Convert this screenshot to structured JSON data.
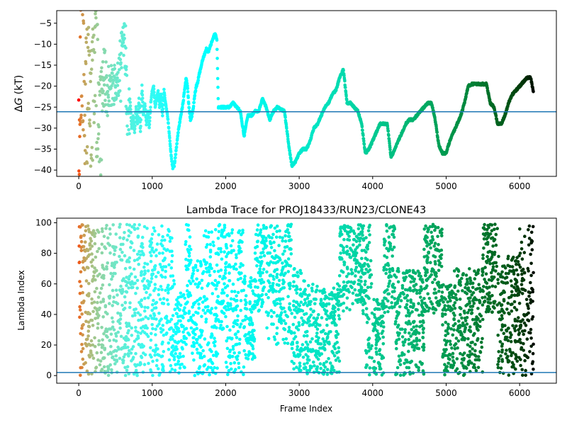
{
  "chart_data": [
    {
      "type": "scatter",
      "title": "",
      "xlabel": "",
      "ylabel_italic": "G",
      "ylabel_prefix": "Δ",
      "ylabel_suffix": " (kT)",
      "xlim": [
        -300,
        6500
      ],
      "ylim": [
        -41.5,
        -2
      ],
      "xticks": [
        0,
        1000,
        2000,
        3000,
        4000,
        5000,
        6000
      ],
      "yticks": [
        -40,
        -35,
        -30,
        -25,
        -20,
        -15,
        -10,
        -5
      ],
      "hline": -26.1,
      "hline_color": "#1f77b4",
      "colormap": "rainbow",
      "trace": [
        [
          0,
          -20
        ],
        [
          5,
          -38
        ],
        [
          10,
          -12
        ],
        [
          20,
          -32
        ],
        [
          30,
          -5
        ],
        [
          40,
          -25
        ],
        [
          55,
          -2
        ],
        [
          70,
          -30
        ],
        [
          85,
          -18
        ],
        [
          100,
          -36
        ],
        [
          120,
          -8
        ],
        [
          140,
          -28
        ],
        [
          160,
          -15
        ],
        [
          180,
          -38
        ],
        [
          200,
          -10
        ],
        [
          220,
          -25
        ],
        [
          240,
          -6
        ],
        [
          260,
          -33
        ],
        [
          280,
          -20
        ],
        [
          300,
          -40
        ],
        [
          320,
          -18
        ],
        [
          340,
          -22
        ],
        [
          360,
          -15
        ],
        [
          380,
          -24
        ],
        [
          400,
          -19
        ],
        [
          420,
          -21
        ],
        [
          440,
          -17
        ],
        [
          460,
          -22
        ],
        [
          480,
          -20
        ],
        [
          500,
          -18
        ],
        [
          520,
          -22
        ],
        [
          540,
          -15
        ],
        [
          560,
          -20
        ],
        [
          580,
          -12
        ],
        [
          600,
          -9
        ],
        [
          620,
          -8
        ],
        [
          640,
          -14
        ],
        [
          660,
          -26
        ],
        [
          680,
          -28
        ],
        [
          700,
          -24
        ],
        [
          720,
          -30
        ],
        [
          740,
          -27
        ],
        [
          760,
          -31
        ],
        [
          780,
          -25
        ],
        [
          800,
          -29
        ],
        [
          820,
          -23
        ],
        [
          840,
          -31
        ],
        [
          860,
          -20
        ],
        [
          880,
          -27
        ],
        [
          900,
          -24
        ],
        [
          920,
          -29
        ],
        [
          940,
          -26
        ],
        [
          960,
          -30
        ],
        [
          980,
          -24
        ],
        [
          1000,
          -21
        ],
        [
          1020,
          -20
        ],
        [
          1040,
          -25
        ],
        [
          1060,
          -23
        ],
        [
          1080,
          -21
        ],
        [
          1100,
          -25
        ],
        [
          1120,
          -22
        ],
        [
          1140,
          -27
        ],
        [
          1160,
          -21
        ],
        [
          1180,
          -24
        ],
        [
          1200,
          -26
        ],
        [
          1220,
          -29
        ],
        [
          1240,
          -33
        ],
        [
          1260,
          -37
        ],
        [
          1280,
          -39.5
        ],
        [
          1300,
          -39
        ],
        [
          1320,
          -36
        ],
        [
          1340,
          -33
        ],
        [
          1360,
          -30
        ],
        [
          1380,
          -28
        ],
        [
          1400,
          -26
        ],
        [
          1420,
          -24
        ],
        [
          1440,
          -21
        ],
        [
          1460,
          -18
        ],
        [
          1480,
          -20
        ],
        [
          1500,
          -25
        ],
        [
          1520,
          -28
        ],
        [
          1540,
          -27
        ],
        [
          1560,
          -25
        ],
        [
          1580,
          -22
        ],
        [
          1600,
          -20
        ],
        [
          1620,
          -19
        ],
        [
          1640,
          -17
        ],
        [
          1660,
          -16
        ],
        [
          1680,
          -14
        ],
        [
          1700,
          -13
        ],
        [
          1720,
          -12
        ],
        [
          1740,
          -11
        ],
        [
          1760,
          -12
        ],
        [
          1780,
          -11
        ],
        [
          1800,
          -10
        ],
        [
          1820,
          -9
        ],
        [
          1840,
          -8
        ],
        [
          1860,
          -7.5
        ],
        [
          1880,
          -9
        ],
        [
          1900,
          -25
        ],
        [
          1950,
          -25
        ],
        [
          2000,
          -25
        ],
        [
          2050,
          -25
        ],
        [
          2100,
          -24
        ],
        [
          2150,
          -25
        ],
        [
          2200,
          -26
        ],
        [
          2250,
          -32
        ],
        [
          2300,
          -27
        ],
        [
          2350,
          -27
        ],
        [
          2400,
          -26
        ],
        [
          2450,
          -26
        ],
        [
          2500,
          -23
        ],
        [
          2550,
          -25
        ],
        [
          2600,
          -28
        ],
        [
          2650,
          -26
        ],
        [
          2700,
          -25
        ],
        [
          2750,
          -25.5
        ],
        [
          2800,
          -26
        ],
        [
          2850,
          -33
        ],
        [
          2900,
          -39
        ],
        [
          2950,
          -38
        ],
        [
          3000,
          -36
        ],
        [
          3050,
          -35
        ],
        [
          3100,
          -35
        ],
        [
          3150,
          -33
        ],
        [
          3200,
          -30
        ],
        [
          3250,
          -29
        ],
        [
          3300,
          -27
        ],
        [
          3350,
          -25
        ],
        [
          3400,
          -24
        ],
        [
          3450,
          -22
        ],
        [
          3500,
          -21
        ],
        [
          3550,
          -18
        ],
        [
          3600,
          -16
        ],
        [
          3620,
          -19
        ],
        [
          3650,
          -24
        ],
        [
          3700,
          -24
        ],
        [
          3750,
          -25
        ],
        [
          3800,
          -26
        ],
        [
          3850,
          -29
        ],
        [
          3900,
          -36
        ],
        [
          3950,
          -35
        ],
        [
          4000,
          -33
        ],
        [
          4050,
          -31
        ],
        [
          4100,
          -29
        ],
        [
          4150,
          -29
        ],
        [
          4200,
          -29
        ],
        [
          4250,
          -37
        ],
        [
          4300,
          -35
        ],
        [
          4350,
          -33
        ],
        [
          4400,
          -31
        ],
        [
          4450,
          -29
        ],
        [
          4500,
          -28
        ],
        [
          4550,
          -28
        ],
        [
          4600,
          -27
        ],
        [
          4650,
          -26
        ],
        [
          4700,
          -25
        ],
        [
          4750,
          -24
        ],
        [
          4800,
          -24
        ],
        [
          4850,
          -28
        ],
        [
          4900,
          -34
        ],
        [
          4950,
          -36
        ],
        [
          5000,
          -36
        ],
        [
          5050,
          -33
        ],
        [
          5100,
          -31
        ],
        [
          5150,
          -29
        ],
        [
          5200,
          -27
        ],
        [
          5250,
          -24
        ],
        [
          5300,
          -20
        ],
        [
          5350,
          -19.5
        ],
        [
          5400,
          -19.5
        ],
        [
          5450,
          -19.5
        ],
        [
          5500,
          -19.5
        ],
        [
          5550,
          -19.5
        ],
        [
          5600,
          -24
        ],
        [
          5650,
          -25
        ],
        [
          5700,
          -29
        ],
        [
          5750,
          -29
        ],
        [
          5800,
          -27
        ],
        [
          5850,
          -24
        ],
        [
          5900,
          -22
        ],
        [
          5950,
          -21
        ],
        [
          6000,
          -20
        ],
        [
          6050,
          -19
        ],
        [
          6100,
          -18
        ],
        [
          6150,
          -18
        ],
        [
          6190,
          -21.5
        ]
      ]
    },
    {
      "type": "scatter",
      "title": "Lambda Trace for PROJ18433/RUN23/CLONE43",
      "xlabel": "Frame Index",
      "ylabel": "Lambda Index",
      "xlim": [
        -300,
        6500
      ],
      "ylim": [
        -5,
        103
      ],
      "xticks": [
        0,
        1000,
        2000,
        3000,
        4000,
        5000,
        6000
      ],
      "yticks": [
        0,
        20,
        40,
        60,
        80,
        100
      ],
      "hline": 2,
      "hline_color": "#1f77b4",
      "colormap": "rainbow",
      "bands": [
        {
          "x": [
            0,
            120
          ],
          "min": 0,
          "max": 99
        },
        {
          "x": [
            120,
            650
          ],
          "min": 0,
          "max": 99
        },
        {
          "x": [
            650,
            1300
          ],
          "min": 0,
          "max": 99
        },
        {
          "x": [
            1300,
            1450
          ],
          "min": 0,
          "max": 60
        },
        {
          "x": [
            1450,
            1540
          ],
          "min": 20,
          "max": 99
        },
        {
          "x": [
            1540,
            1700
          ],
          "min": 0,
          "max": 75
        },
        {
          "x": [
            1700,
            1900
          ],
          "min": 0,
          "max": 99
        },
        {
          "x": [
            1900,
            2000
          ],
          "min": 30,
          "max": 99
        },
        {
          "x": [
            2000,
            2250
          ],
          "min": 0,
          "max": 99
        },
        {
          "x": [
            2250,
            2400
          ],
          "min": 10,
          "max": 65
        },
        {
          "x": [
            2400,
            2550
          ],
          "min": 40,
          "max": 99
        },
        {
          "x": [
            2550,
            2900
          ],
          "min": 20,
          "max": 99
        },
        {
          "x": [
            2900,
            3100
          ],
          "min": 0,
          "max": 70
        },
        {
          "x": [
            3100,
            3550
          ],
          "min": 0,
          "max": 60
        },
        {
          "x": [
            3550,
            3900
          ],
          "min": 40,
          "max": 99
        },
        {
          "x": [
            3900,
            4000
          ],
          "min": 0,
          "max": 99
        },
        {
          "x": [
            4000,
            4150
          ],
          "min": 0,
          "max": 50
        },
        {
          "x": [
            4150,
            4300
          ],
          "min": 40,
          "max": 99
        },
        {
          "x": [
            4300,
            4700
          ],
          "min": 0,
          "max": 70
        },
        {
          "x": [
            4700,
            4950
          ],
          "min": 40,
          "max": 99
        },
        {
          "x": [
            4950,
            5100
          ],
          "min": 0,
          "max": 60
        },
        {
          "x": [
            5100,
            5500
          ],
          "min": 0,
          "max": 70
        },
        {
          "x": [
            5500,
            5700
          ],
          "min": 40,
          "max": 99
        },
        {
          "x": [
            5700,
            6000
          ],
          "min": 0,
          "max": 80
        },
        {
          "x": [
            6000,
            6190
          ],
          "min": 0,
          "max": 99
        }
      ]
    }
  ]
}
